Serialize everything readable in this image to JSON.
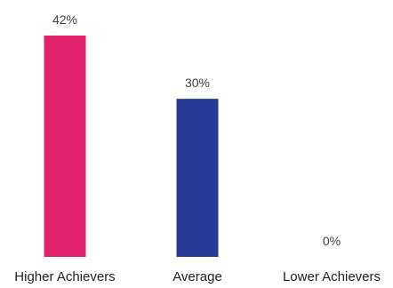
{
  "chart_data": {
    "type": "bar",
    "categories": [
      "Higher Achievers",
      "Average",
      "Lower Achievers"
    ],
    "values": [
      42,
      30,
      0
    ],
    "data_labels": [
      "42%",
      "30%",
      "0%"
    ],
    "colors": [
      "#E2226B",
      "#283A97",
      "#9A9A9A"
    ],
    "title": "",
    "xlabel": "",
    "ylabel": "",
    "ylim": [
      0,
      42
    ],
    "grid": false,
    "legend": "none"
  }
}
